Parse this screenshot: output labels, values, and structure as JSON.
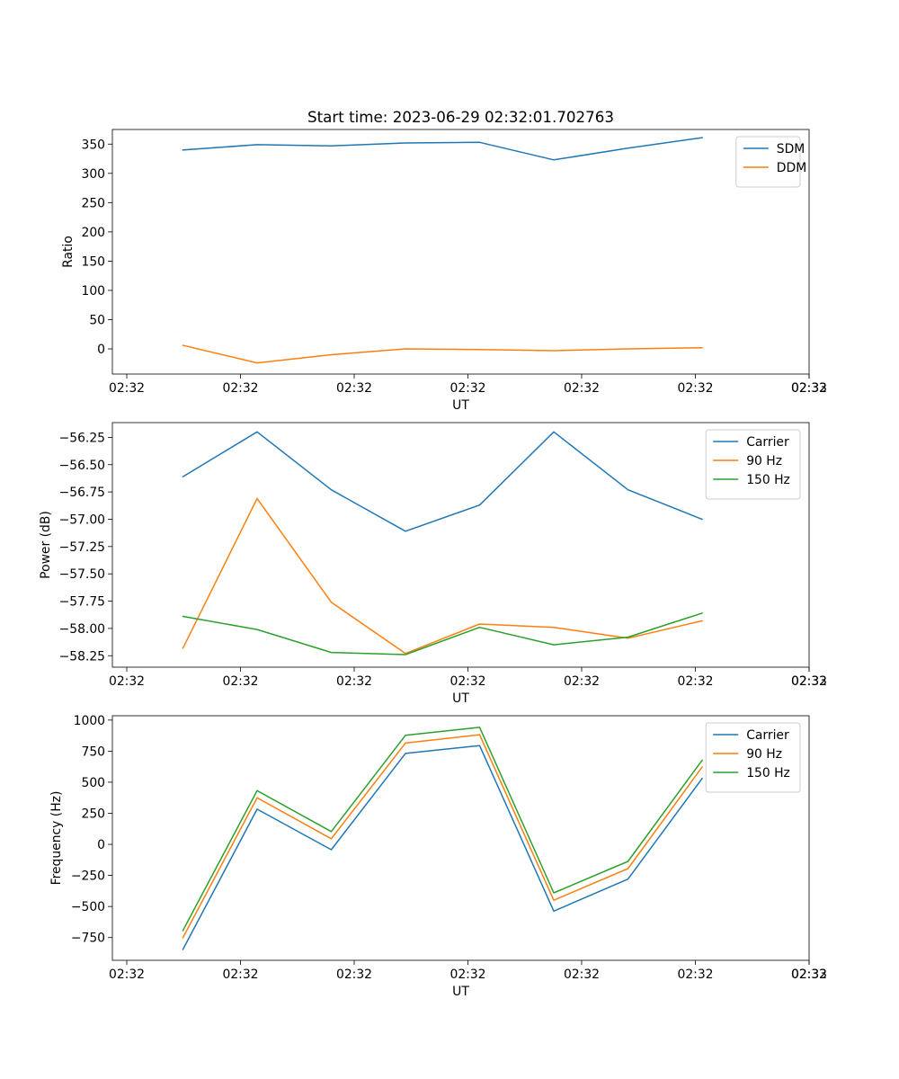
{
  "title": "Start time: 2023-06-29 02:32:01.702763",
  "colors": {
    "blue": "#1f77b4",
    "orange": "#ff7f0e",
    "green": "#2ca02c"
  },
  "chart_data": [
    {
      "type": "line",
      "title": "Start time: 2023-06-29 02:32:01.702763",
      "xlabel": "UT",
      "ylabel": "Ratio",
      "x_tick_labels": [
        "02:32",
        "02:32",
        "02:32",
        "02:32",
        "02:32",
        "02:32",
        "02:32",
        "02:33"
      ],
      "y_ticks": [
        0,
        50,
        100,
        150,
        200,
        250,
        300,
        350
      ],
      "y_tick_labels": [
        "0",
        "50",
        "100",
        "150",
        "200",
        "250",
        "300",
        "350"
      ],
      "ylim": [
        -43,
        375
      ],
      "legend_position": "top-right",
      "series": [
        {
          "name": "SDM",
          "color": "#1f77b4",
          "values": [
            340,
            349,
            347,
            352,
            353,
            323,
            343,
            361
          ]
        },
        {
          "name": "DDM",
          "color": "#ff7f0e",
          "values": [
            6,
            -24,
            -10,
            0,
            -1,
            -3,
            0,
            2
          ]
        }
      ]
    },
    {
      "type": "line",
      "title": "",
      "xlabel": "UT",
      "ylabel": "Power (dB)",
      "x_tick_labels": [
        "02:32",
        "02:32",
        "02:32",
        "02:32",
        "02:32",
        "02:32",
        "02:32",
        "02:33"
      ],
      "y_ticks": [
        -56.25,
        -56.5,
        -56.75,
        -57.0,
        -57.25,
        -57.5,
        -57.75,
        -58.0,
        -58.25
      ],
      "y_tick_labels": [
        "−56.25",
        "−56.50",
        "−56.75",
        "−57.00",
        "−57.25",
        "−57.50",
        "−57.75",
        "−58.00",
        "−58.25"
      ],
      "ylim": [
        -58.355,
        -56.115
      ],
      "legend_position": "top-right",
      "series": [
        {
          "name": "Carrier",
          "color": "#1f77b4",
          "values": [
            -56.61,
            -56.2,
            -56.73,
            -57.11,
            -56.87,
            -56.2,
            -56.73,
            -57.0
          ]
        },
        {
          "name": "90 Hz",
          "color": "#ff7f0e",
          "values": [
            -58.18,
            -56.81,
            -57.76,
            -58.23,
            -57.96,
            -57.99,
            -58.09,
            -57.93
          ]
        },
        {
          "name": "150 Hz",
          "color": "#2ca02c",
          "values": [
            -57.89,
            -58.01,
            -58.22,
            -58.24,
            -57.99,
            -58.15,
            -58.08,
            -57.86
          ]
        }
      ]
    },
    {
      "type": "line",
      "title": "",
      "xlabel": "UT",
      "ylabel": "Frequency (Hz)",
      "x_tick_labels": [
        "02:32",
        "02:32",
        "02:32",
        "02:32",
        "02:32",
        "02:32",
        "02:32",
        "02:33"
      ],
      "y_ticks": [
        1000,
        750,
        500,
        250,
        0,
        -250,
        -500,
        -750
      ],
      "y_tick_labels": [
        "1000",
        "750",
        "500",
        "250",
        "0",
        "−250",
        "−500",
        "−750"
      ],
      "ylim": [
        -933,
        1035
      ],
      "legend_position": "top-right",
      "series": [
        {
          "name": "Carrier",
          "color": "#1f77b4",
          "values": [
            -845,
            283,
            -43,
            732,
            795,
            -537,
            -280,
            530
          ]
        },
        {
          "name": "90 Hz",
          "color": "#ff7f0e",
          "values": [
            -750,
            375,
            45,
            815,
            882,
            -450,
            -195,
            622
          ]
        },
        {
          "name": "150 Hz",
          "color": "#2ca02c",
          "values": [
            -693,
            432,
            103,
            877,
            942,
            -390,
            -137,
            677
          ]
        }
      ]
    }
  ]
}
